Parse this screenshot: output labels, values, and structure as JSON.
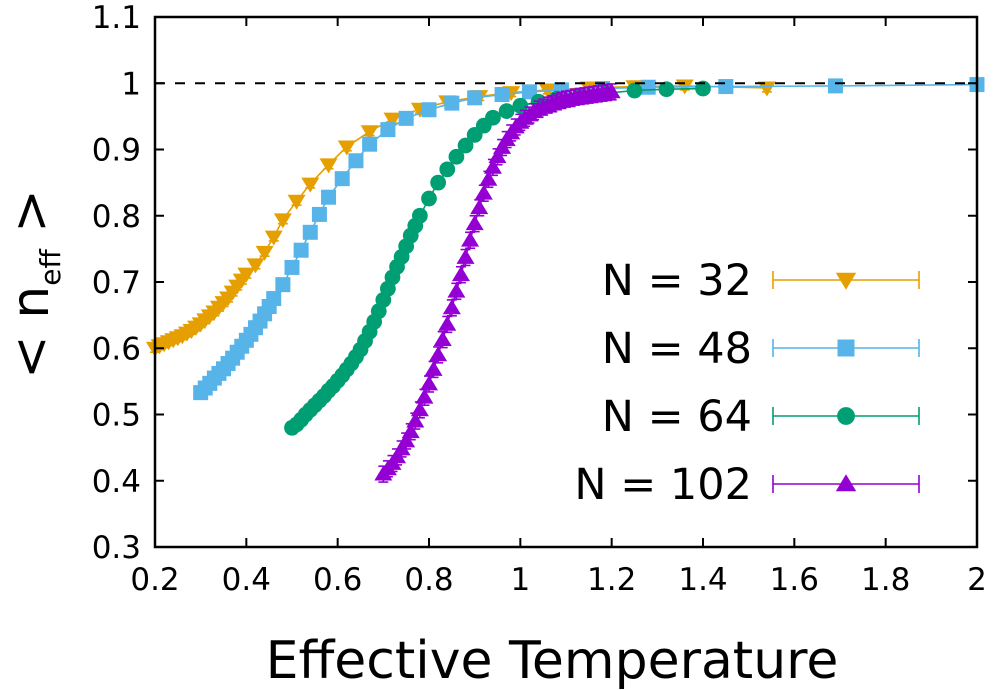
{
  "chart_data": {
    "type": "scatter",
    "title": "",
    "xlabel": "Effective Temperature",
    "ylabel": "< n",
    "ylabel_subscript": "eff",
    "ylabel_close": ">",
    "xlim": [
      0.2,
      2.0
    ],
    "ylim": [
      0.3,
      1.1
    ],
    "xticks": [
      "0.2",
      "0.4",
      "0.6",
      "0.8",
      "1",
      "1.2",
      "1.4",
      "1.6",
      "1.8",
      "2"
    ],
    "yticks": [
      "0.3",
      "0.4",
      "0.5",
      "0.6",
      "0.7",
      "0.8",
      "0.9",
      "1",
      "1.1"
    ],
    "reference_line": {
      "y": 1.0,
      "style": "dashed"
    },
    "grid": false,
    "legend_position": "right",
    "series": [
      {
        "name": "N = 32",
        "color": "#E69F00",
        "marker": "triangle-down",
        "err": 0.006,
        "x": [
          0.2,
          0.21,
          0.22,
          0.23,
          0.24,
          0.25,
          0.26,
          0.27,
          0.28,
          0.29,
          0.3,
          0.31,
          0.32,
          0.33,
          0.34,
          0.35,
          0.36,
          0.37,
          0.38,
          0.39,
          0.4,
          0.42,
          0.44,
          0.46,
          0.48,
          0.51,
          0.54,
          0.58,
          0.62,
          0.67,
          0.72,
          0.78,
          0.84,
          0.91,
          0.98,
          1.06,
          1.15,
          1.25,
          1.36,
          1.54
        ],
        "y": [
          0.6,
          0.604,
          0.607,
          0.61,
          0.613,
          0.616,
          0.619,
          0.623,
          0.627,
          0.632,
          0.637,
          0.643,
          0.649,
          0.655,
          0.662,
          0.669,
          0.676,
          0.685,
          0.694,
          0.703,
          0.712,
          0.726,
          0.745,
          0.768,
          0.794,
          0.822,
          0.848,
          0.877,
          0.904,
          0.927,
          0.946,
          0.961,
          0.972,
          0.98,
          0.986,
          0.99,
          0.993,
          0.995,
          0.996,
          0.993
        ]
      },
      {
        "name": "N = 48",
        "color": "#56B4E9",
        "marker": "square",
        "err": 0.006,
        "x": [
          0.3,
          0.31,
          0.32,
          0.33,
          0.34,
          0.35,
          0.36,
          0.37,
          0.38,
          0.39,
          0.4,
          0.41,
          0.42,
          0.43,
          0.44,
          0.45,
          0.46,
          0.48,
          0.5,
          0.52,
          0.54,
          0.56,
          0.58,
          0.61,
          0.64,
          0.67,
          0.71,
          0.75,
          0.8,
          0.85,
          0.9,
          0.96,
          1.02,
          1.09,
          1.18,
          1.28,
          1.45,
          1.69,
          2.0
        ],
        "y": [
          0.533,
          0.54,
          0.547,
          0.555,
          0.562,
          0.569,
          0.577,
          0.585,
          0.594,
          0.603,
          0.612,
          0.621,
          0.631,
          0.641,
          0.652,
          0.663,
          0.675,
          0.696,
          0.722,
          0.748,
          0.775,
          0.802,
          0.828,
          0.856,
          0.883,
          0.908,
          0.93,
          0.947,
          0.96,
          0.97,
          0.978,
          0.983,
          0.987,
          0.99,
          0.992,
          0.994,
          0.995,
          0.996,
          0.998
        ]
      },
      {
        "name": "N = 64",
        "color": "#009E73",
        "marker": "circle",
        "err": 0.008,
        "x": [
          0.5,
          0.51,
          0.52,
          0.53,
          0.54,
          0.55,
          0.56,
          0.57,
          0.58,
          0.59,
          0.6,
          0.61,
          0.62,
          0.63,
          0.64,
          0.65,
          0.66,
          0.67,
          0.68,
          0.69,
          0.7,
          0.71,
          0.72,
          0.73,
          0.74,
          0.75,
          0.76,
          0.77,
          0.78,
          0.8,
          0.82,
          0.84,
          0.86,
          0.88,
          0.9,
          0.92,
          0.94,
          0.97,
          1.0,
          1.04,
          1.08,
          1.13,
          1.19,
          1.25,
          1.32,
          1.4
        ],
        "y": [
          0.48,
          0.485,
          0.492,
          0.5,
          0.507,
          0.514,
          0.521,
          0.528,
          0.536,
          0.543,
          0.551,
          0.559,
          0.568,
          0.577,
          0.587,
          0.598,
          0.611,
          0.625,
          0.64,
          0.656,
          0.673,
          0.69,
          0.707,
          0.723,
          0.738,
          0.754,
          0.77,
          0.785,
          0.8,
          0.826,
          0.85,
          0.87,
          0.889,
          0.906,
          0.922,
          0.936,
          0.948,
          0.958,
          0.966,
          0.972,
          0.977,
          0.981,
          0.985,
          0.989,
          0.991,
          0.992
        ]
      },
      {
        "name": "N = 102",
        "color": "#9400D3",
        "marker": "triangle-up",
        "err": 0.012,
        "x": [
          0.7,
          0.71,
          0.72,
          0.73,
          0.74,
          0.75,
          0.76,
          0.77,
          0.78,
          0.79,
          0.8,
          0.81,
          0.82,
          0.83,
          0.84,
          0.85,
          0.86,
          0.87,
          0.88,
          0.89,
          0.9,
          0.91,
          0.92,
          0.93,
          0.94,
          0.95,
          0.96,
          0.97,
          0.98,
          0.99,
          1.0,
          1.01,
          1.02,
          1.03,
          1.04,
          1.05,
          1.06,
          1.07,
          1.08,
          1.09,
          1.1,
          1.11,
          1.12,
          1.13,
          1.14,
          1.15,
          1.16,
          1.17,
          1.18,
          1.19,
          1.2
        ],
        "y": [
          0.41,
          0.418,
          0.426,
          0.436,
          0.448,
          0.46,
          0.474,
          0.49,
          0.507,
          0.526,
          0.546,
          0.568,
          0.59,
          0.613,
          0.636,
          0.661,
          0.686,
          0.711,
          0.737,
          0.763,
          0.788,
          0.812,
          0.834,
          0.855,
          0.873,
          0.889,
          0.903,
          0.915,
          0.925,
          0.934,
          0.941,
          0.947,
          0.952,
          0.957,
          0.961,
          0.964,
          0.967,
          0.969,
          0.972,
          0.974,
          0.976,
          0.977,
          0.979,
          0.98,
          0.981,
          0.982,
          0.983,
          0.984,
          0.985,
          0.986,
          0.987
        ]
      }
    ]
  }
}
